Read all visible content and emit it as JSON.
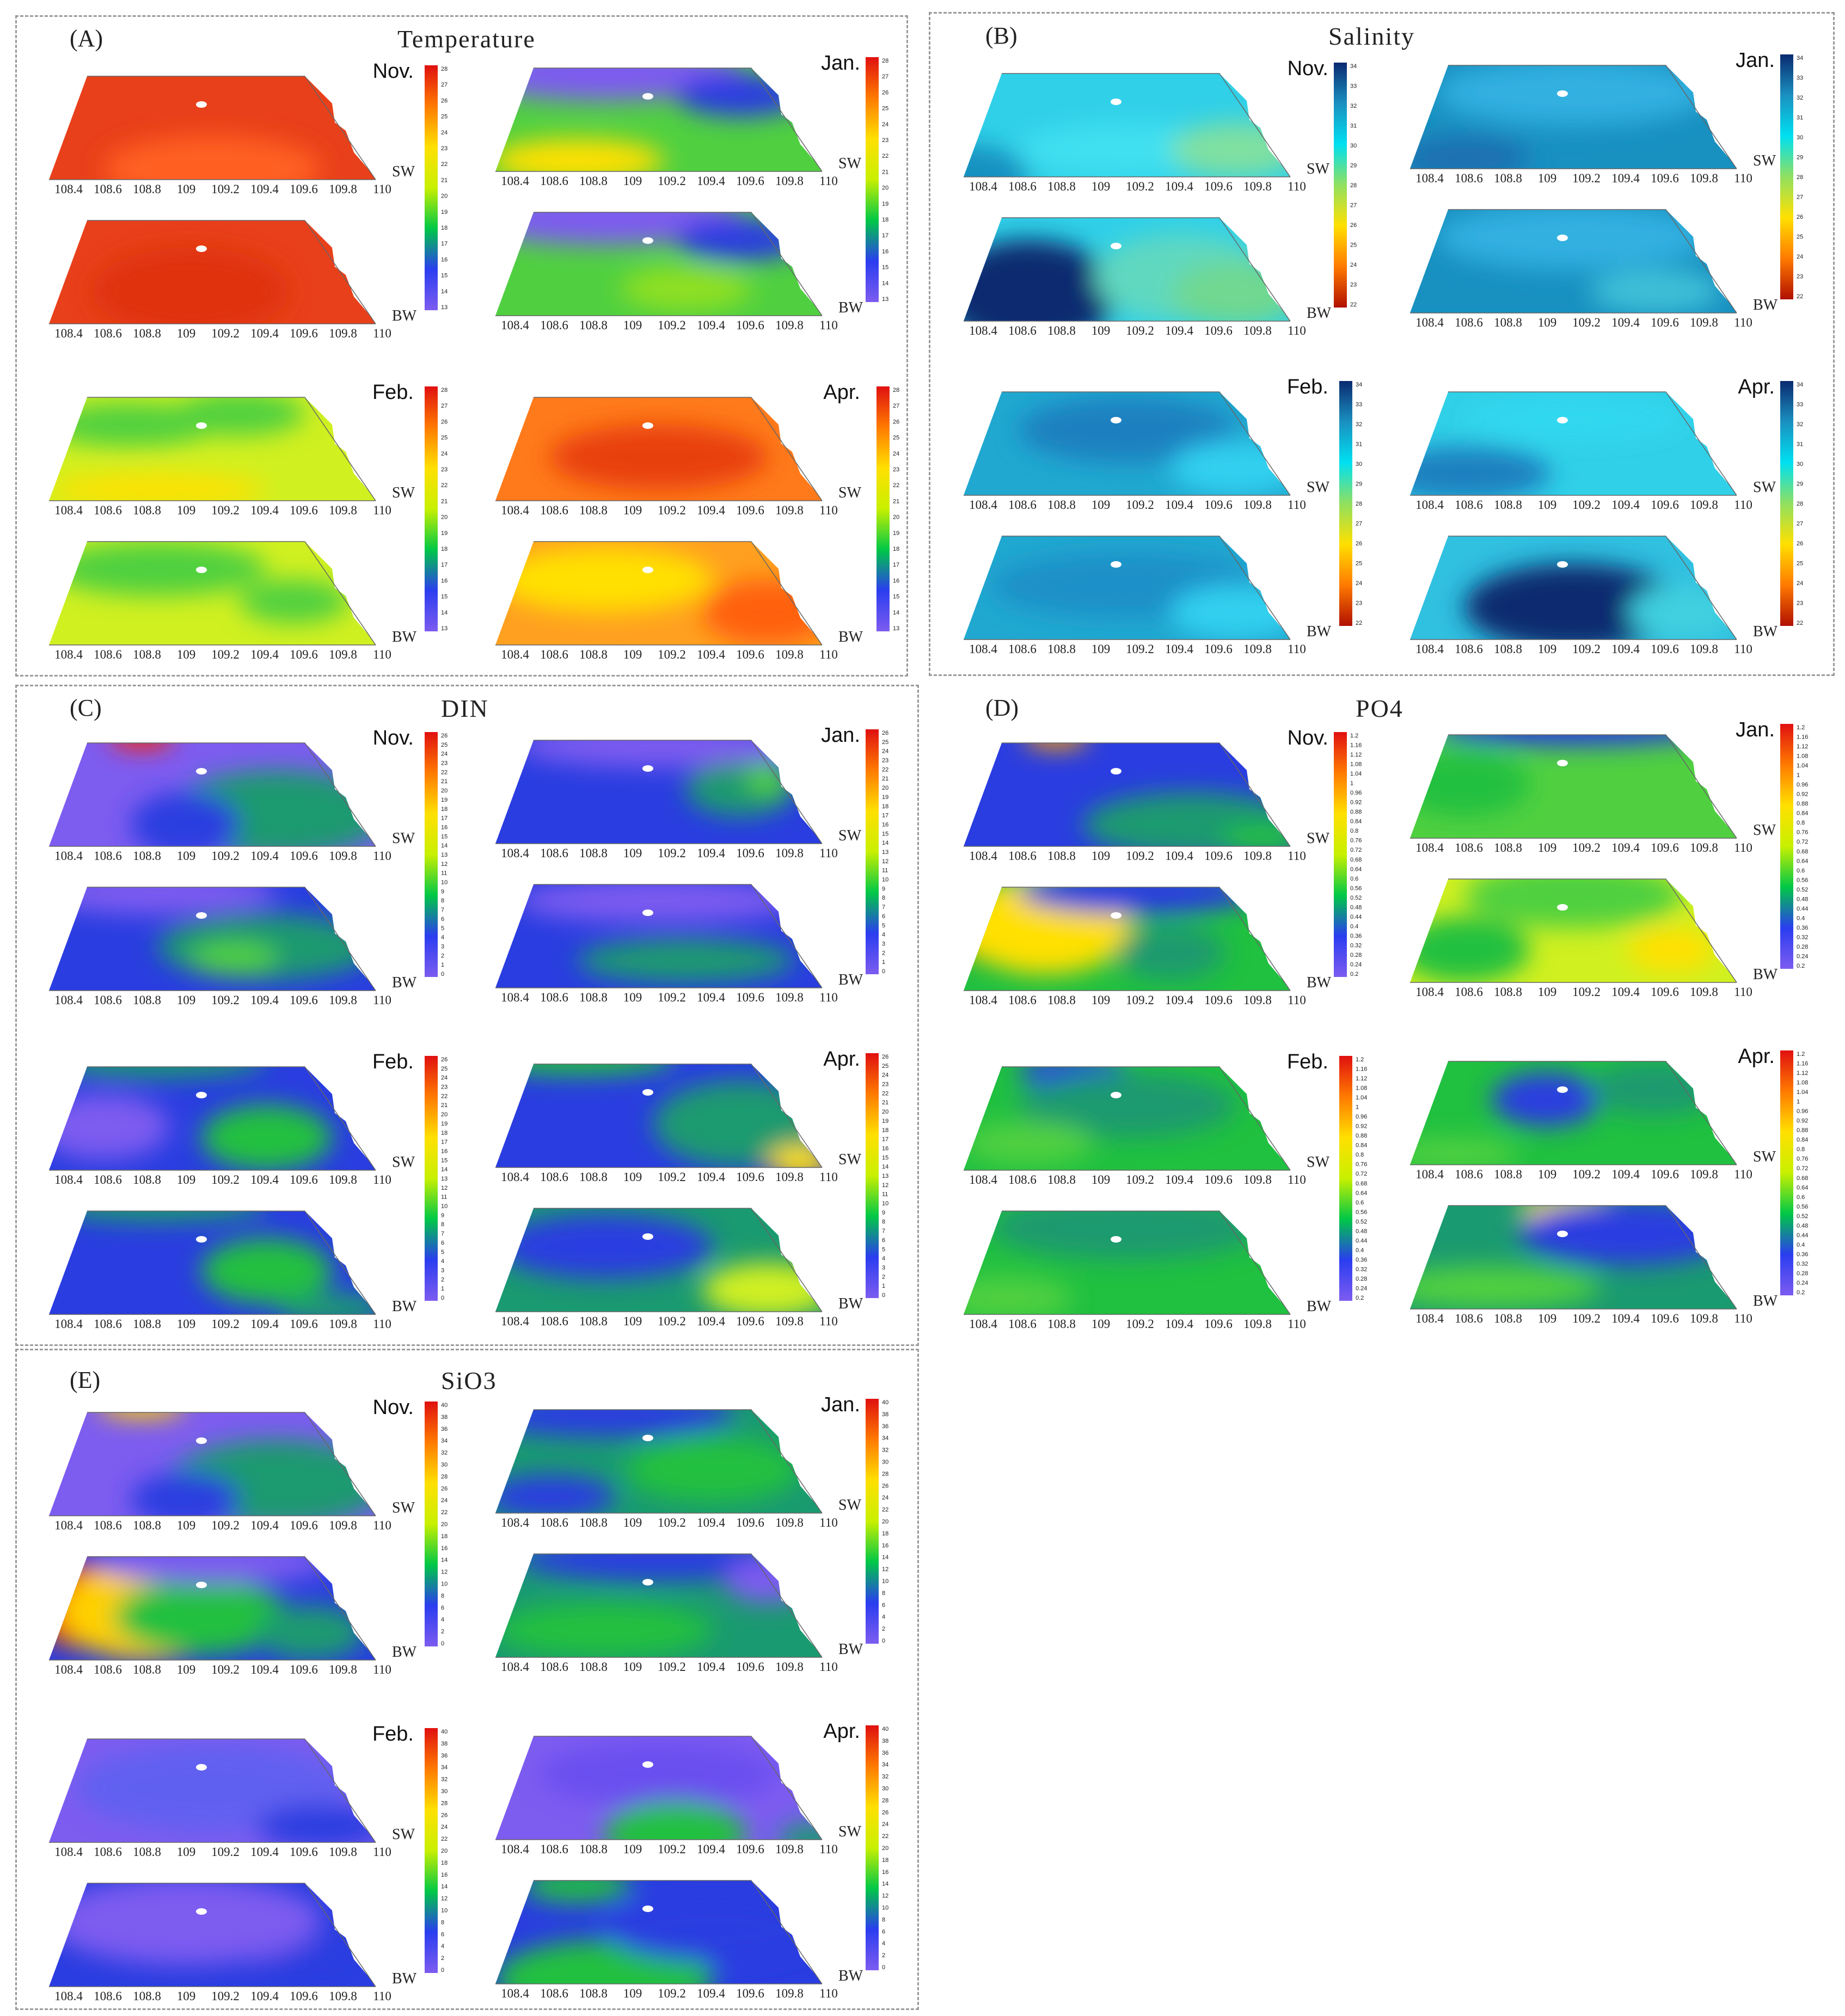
{
  "panels": [
    {
      "id": "A",
      "label": "(A)",
      "title": "Temperature"
    },
    {
      "id": "B",
      "label": "(B)",
      "title": "Salinity"
    },
    {
      "id": "C",
      "label": "(C)",
      "title": "DIN"
    },
    {
      "id": "D",
      "label": "(D)",
      "title": "PO4"
    },
    {
      "id": "E",
      "label": "(E)",
      "title": "SiO3"
    }
  ],
  "months": {
    "nov": "Nov.",
    "jan": "Jan.",
    "feb": "Feb.",
    "apr": "Apr."
  },
  "layers": {
    "surface": "SW",
    "bottom": "BW"
  },
  "longitude_ticks": [
    "108.4",
    "108.6",
    "108.8",
    "109",
    "109.2",
    "109.4",
    "109.6",
    "109.8",
    "110"
  ],
  "palettes": {
    "rainbow": [
      "#7d5cf0",
      "#2a3df0",
      "#00c846",
      "#c8f000",
      "#ffe000",
      "#ff7a00",
      "#e01010"
    ],
    "salinity": [
      "#b01000",
      "#ff7a00",
      "#ffe000",
      "#90e060",
      "#00e0f0",
      "#1a90c0",
      "#0a2a70"
    ]
  },
  "colorbar_ticks": {
    "temperature_nov_jan": [
      "28",
      "27",
      "26",
      "25",
      "24",
      "23",
      "22",
      "21",
      "20",
      "19",
      "18",
      "17",
      "16",
      "15",
      "14",
      "13"
    ],
    "temperature_feb_apr": [
      "28",
      "27",
      "26",
      "25",
      "24",
      "23",
      "22",
      "21",
      "20",
      "19",
      "18",
      "17",
      "16",
      "15",
      "14",
      "13"
    ],
    "salinity": [
      "34",
      "33",
      "32",
      "31",
      "30",
      "29",
      "28",
      "27",
      "26",
      "25",
      "24",
      "23",
      "22"
    ],
    "din": [
      "26",
      "25",
      "24",
      "23",
      "22",
      "21",
      "20",
      "19",
      "18",
      "17",
      "16",
      "15",
      "14",
      "13",
      "12",
      "11",
      "10",
      "9",
      "8",
      "7",
      "6",
      "5",
      "4",
      "3",
      "2",
      "1",
      "0"
    ],
    "po4": [
      "1.2",
      "1.16",
      "1.12",
      "1.08",
      "1.04",
      "1",
      "0.96",
      "0.92",
      "0.88",
      "0.84",
      "0.8",
      "0.76",
      "0.72",
      "0.68",
      "0.64",
      "0.6",
      "0.56",
      "0.52",
      "0.48",
      "0.44",
      "0.4",
      "0.36",
      "0.32",
      "0.28",
      "0.24",
      "0.2"
    ],
    "sio3": [
      "40",
      "38",
      "36",
      "34",
      "32",
      "30",
      "28",
      "26",
      "24",
      "22",
      "20",
      "18",
      "16",
      "14",
      "12",
      "10",
      "8",
      "6",
      "4",
      "2",
      "0"
    ]
  }
}
